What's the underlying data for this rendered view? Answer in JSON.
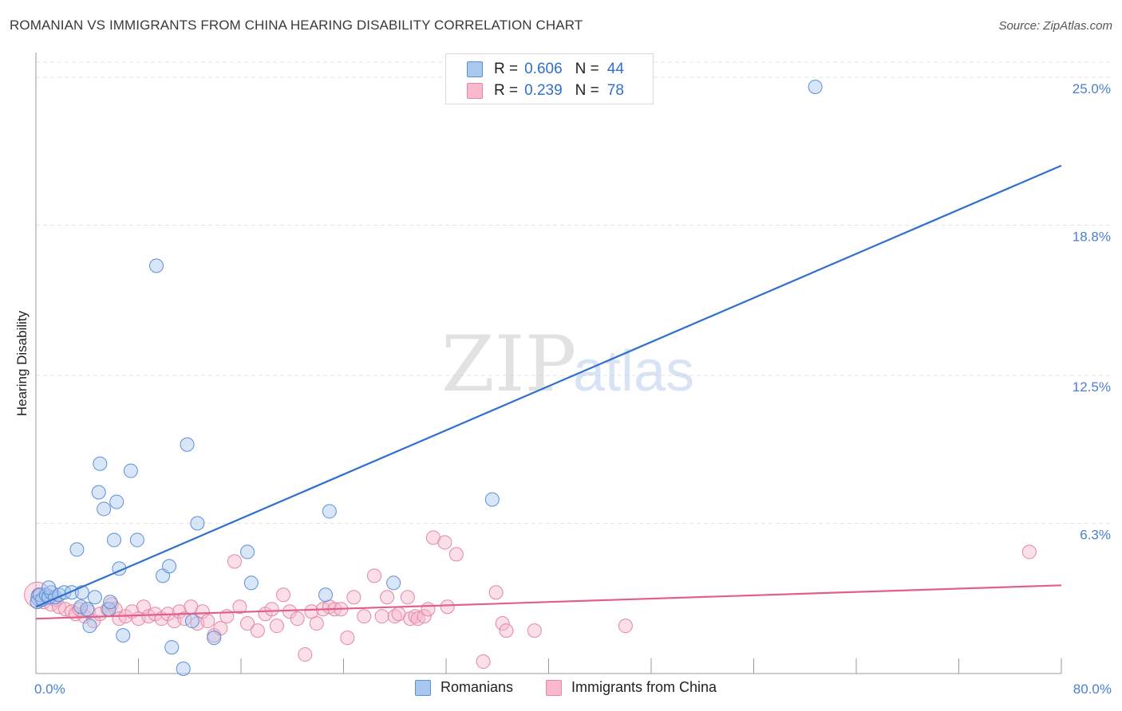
{
  "title": "ROMANIAN VS IMMIGRANTS FROM CHINA HEARING DISABILITY CORRELATION CHART",
  "source": "Source: ZipAtlas.com",
  "watermark": {
    "zip": "ZIP",
    "atlas": "atlas"
  },
  "legend": {
    "rows": [
      {
        "r_label": "R =",
        "r_value": "0.606",
        "n_label": "N =",
        "n_value": "44"
      },
      {
        "r_label": "R =",
        "r_value": "0.239",
        "n_label": "N =",
        "n_value": "78"
      }
    ]
  },
  "bottom_legend": {
    "series1": "Romanians",
    "series2": "Immigrants from China"
  },
  "colors": {
    "blue_fill": "#a9c8f0",
    "blue_stroke": "#5b8fd8",
    "blue_line": "#2e6fd0",
    "pink_fill": "#f7b9cb",
    "pink_stroke": "#e586a4",
    "pink_line": "#e0608a",
    "grid": "#e3e3e3",
    "axis_text": "#4a7fd0"
  },
  "chart_data": {
    "type": "scatter",
    "title": "ROMANIAN VS IMMIGRANTS FROM CHINA HEARING DISABILITY CORRELATION CHART",
    "xlabel": "",
    "ylabel": "Hearing Disability",
    "xlim": [
      0,
      80
    ],
    "ylim": [
      0,
      25.7
    ],
    "x_tick_labels": [
      "0.0%",
      "80.0%"
    ],
    "y_ticks": [
      {
        "value": 6.3,
        "label": "6.3%"
      },
      {
        "value": 12.5,
        "label": "12.5%"
      },
      {
        "value": 18.8,
        "label": "18.8%"
      },
      {
        "value": 25.0,
        "label": "25.0%"
      }
    ],
    "series": [
      {
        "name": "Romanians",
        "color": "#5b8fd8",
        "R": 0.606,
        "N": 44,
        "trend": {
          "x": [
            0,
            80
          ],
          "y": [
            2.8,
            21.3
          ]
        },
        "points": [
          [
            0.1,
            3.0
          ],
          [
            0.3,
            3.3
          ],
          [
            0.5,
            3.1
          ],
          [
            0.8,
            3.3
          ],
          [
            1.0,
            3.2
          ],
          [
            1.2,
            3.4
          ],
          [
            1.5,
            3.2
          ],
          [
            1.8,
            3.3
          ],
          [
            2.2,
            3.4
          ],
          [
            2.8,
            3.4
          ],
          [
            3.2,
            5.2
          ],
          [
            3.5,
            2.8
          ],
          [
            3.6,
            3.4
          ],
          [
            4.0,
            2.7
          ],
          [
            4.2,
            2.0
          ],
          [
            4.6,
            3.2
          ],
          [
            4.9,
            7.6
          ],
          [
            5.0,
            8.8
          ],
          [
            5.3,
            6.9
          ],
          [
            5.7,
            2.7
          ],
          [
            5.8,
            3.0
          ],
          [
            6.1,
            5.6
          ],
          [
            6.3,
            7.2
          ],
          [
            6.5,
            4.4
          ],
          [
            6.8,
            1.6
          ],
          [
            7.4,
            8.5
          ],
          [
            7.9,
            5.6
          ],
          [
            9.4,
            17.1
          ],
          [
            9.9,
            4.1
          ],
          [
            10.4,
            4.5
          ],
          [
            10.6,
            1.1
          ],
          [
            11.5,
            0.2
          ],
          [
            11.8,
            9.6
          ],
          [
            12.2,
            2.2
          ],
          [
            12.6,
            6.3
          ],
          [
            13.9,
            1.5
          ],
          [
            16.5,
            5.1
          ],
          [
            16.8,
            3.8
          ],
          [
            22.6,
            3.3
          ],
          [
            22.9,
            6.8
          ],
          [
            27.9,
            3.8
          ],
          [
            35.6,
            7.3
          ],
          [
            60.8,
            24.6
          ],
          [
            1.0,
            3.6
          ]
        ]
      },
      {
        "name": "Immigrants from China",
        "color": "#e586a4",
        "R": 0.239,
        "N": 78,
        "trend": {
          "x": [
            0,
            80
          ],
          "y": [
            2.3,
            3.7
          ]
        },
        "points": [
          [
            0.2,
            3.3
          ],
          [
            0.6,
            3.0
          ],
          [
            0.9,
            3.2
          ],
          [
            1.2,
            2.9
          ],
          [
            1.5,
            3.1
          ],
          [
            1.8,
            2.8
          ],
          [
            2.3,
            2.7
          ],
          [
            2.8,
            2.6
          ],
          [
            3.1,
            2.5
          ],
          [
            3.4,
            2.7
          ],
          [
            3.8,
            2.4
          ],
          [
            4.1,
            2.6
          ],
          [
            4.5,
            2.2
          ],
          [
            5.0,
            2.5
          ],
          [
            5.6,
            2.7
          ],
          [
            5.9,
            2.9
          ],
          [
            6.2,
            2.7
          ],
          [
            6.5,
            2.3
          ],
          [
            7.0,
            2.4
          ],
          [
            7.5,
            2.6
          ],
          [
            8.0,
            2.3
          ],
          [
            8.4,
            2.8
          ],
          [
            8.8,
            2.4
          ],
          [
            9.3,
            2.5
          ],
          [
            9.8,
            2.3
          ],
          [
            10.3,
            2.5
          ],
          [
            10.8,
            2.2
          ],
          [
            11.2,
            2.6
          ],
          [
            11.6,
            2.3
          ],
          [
            12.1,
            2.8
          ],
          [
            12.6,
            2.1
          ],
          [
            13.0,
            2.6
          ],
          [
            13.4,
            2.2
          ],
          [
            13.9,
            1.6
          ],
          [
            14.4,
            1.9
          ],
          [
            14.9,
            2.4
          ],
          [
            15.5,
            4.7
          ],
          [
            15.9,
            2.8
          ],
          [
            16.5,
            2.1
          ],
          [
            17.3,
            1.8
          ],
          [
            17.9,
            2.5
          ],
          [
            18.4,
            2.7
          ],
          [
            18.8,
            2.0
          ],
          [
            19.3,
            3.3
          ],
          [
            19.8,
            2.6
          ],
          [
            20.4,
            2.3
          ],
          [
            21.0,
            0.8
          ],
          [
            21.5,
            2.6
          ],
          [
            21.9,
            2.1
          ],
          [
            22.4,
            2.7
          ],
          [
            22.9,
            2.8
          ],
          [
            23.3,
            2.7
          ],
          [
            23.8,
            2.7
          ],
          [
            24.3,
            1.5
          ],
          [
            24.8,
            3.2
          ],
          [
            25.6,
            2.4
          ],
          [
            26.4,
            4.1
          ],
          [
            27.0,
            2.4
          ],
          [
            27.4,
            3.2
          ],
          [
            28.0,
            2.4
          ],
          [
            28.3,
            2.5
          ],
          [
            29.2,
            2.3
          ],
          [
            29.0,
            3.2
          ],
          [
            29.6,
            2.4
          ],
          [
            29.8,
            2.3
          ],
          [
            30.3,
            2.4
          ],
          [
            30.6,
            2.7
          ],
          [
            31.0,
            5.7
          ],
          [
            31.9,
            5.5
          ],
          [
            32.1,
            2.8
          ],
          [
            32.8,
            5.0
          ],
          [
            34.9,
            0.5
          ],
          [
            35.9,
            3.4
          ],
          [
            36.4,
            2.1
          ],
          [
            36.7,
            1.8
          ],
          [
            38.9,
            1.8
          ],
          [
            46.0,
            2.0
          ],
          [
            77.5,
            5.1
          ]
        ]
      }
    ]
  }
}
